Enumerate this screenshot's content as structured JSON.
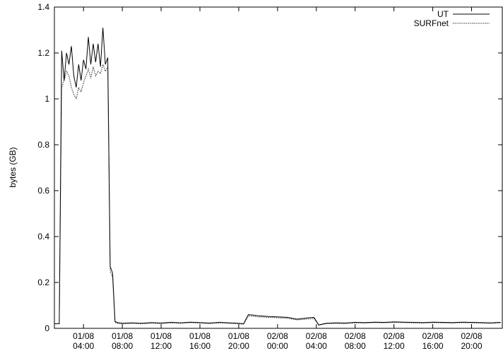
{
  "chart_data": {
    "type": "line",
    "ylabel": "bytes (GB)",
    "x": [
      "01/08 01:00",
      "01/08 01:15",
      "01/08 01:30",
      "01/08 01:45",
      "01/08 02:00",
      "01/08 02:15",
      "01/08 02:30",
      "01/08 02:45",
      "01/08 03:00",
      "01/08 03:15",
      "01/08 03:30",
      "01/08 03:45",
      "01/08 04:00",
      "01/08 04:15",
      "01/08 04:30",
      "01/08 04:45",
      "01/08 05:00",
      "01/08 05:15",
      "01/08 05:30",
      "01/08 05:45",
      "01/08 06:00",
      "01/08 06:15",
      "01/08 06:30",
      "01/08 06:45",
      "01/08 07:00",
      "01/08 07:15",
      "01/08 07:30",
      "01/08 08:00",
      "01/08 09:00",
      "01/08 10:00",
      "01/08 11:00",
      "01/08 12:00",
      "01/08 13:00",
      "01/08 14:00",
      "01/08 15:00",
      "01/08 16:00",
      "01/08 17:00",
      "01/08 18:00",
      "01/08 19:00",
      "01/08 20:00",
      "01/08 20:30",
      "01/08 21:00",
      "01/08 22:00",
      "01/08 23:00",
      "02/08 00:00",
      "02/08 01:00",
      "02/08 02:00",
      "02/08 03:00",
      "02/08 03:45",
      "02/08 04:15",
      "02/08 05:00",
      "02/08 06:00",
      "02/08 07:00",
      "02/08 08:00",
      "02/08 09:00",
      "02/08 10:00",
      "02/08 11:00",
      "02/08 12:00",
      "02/08 13:00",
      "02/08 14:00",
      "02/08 15:00",
      "02/08 16:00",
      "02/08 17:00",
      "02/08 18:00",
      "02/08 19:00",
      "02/08 20:00",
      "02/08 21:00",
      "02/08 22:00",
      "02/08 23:00"
    ],
    "series": [
      {
        "name": "UT",
        "color": "#000000",
        "dash": "solid",
        "values": [
          0.02,
          0.02,
          0.02,
          1.21,
          1.08,
          1.2,
          1.15,
          1.23,
          1.1,
          1.05,
          1.15,
          1.08,
          1.17,
          1.13,
          1.27,
          1.15,
          1.24,
          1.16,
          1.24,
          1.14,
          1.31,
          1.15,
          1.18,
          0.27,
          0.24,
          0.03,
          0.025,
          0.022,
          0.024,
          0.022,
          0.025,
          0.023,
          0.026,
          0.024,
          0.027,
          0.025,
          0.023,
          0.026,
          0.024,
          0.022,
          0.02,
          0.06,
          0.055,
          0.052,
          0.05,
          0.048,
          0.04,
          0.045,
          0.048,
          0.015,
          0.022,
          0.024,
          0.023,
          0.026,
          0.025,
          0.027,
          0.026,
          0.028,
          0.027,
          0.026,
          0.025,
          0.027,
          0.026,
          0.025,
          0.027,
          0.026,
          0.025,
          0.024,
          0.026
        ]
      },
      {
        "name": "SURFnet",
        "color": "#000000",
        "dash": "dotted",
        "values": [
          0.02,
          0.02,
          0.02,
          1.05,
          1.08,
          1.12,
          1.1,
          1.05,
          1.02,
          1.0,
          1.05,
          1.03,
          1.07,
          1.1,
          1.13,
          1.09,
          1.14,
          1.1,
          1.12,
          1.11,
          1.15,
          1.12,
          1.14,
          0.25,
          0.22,
          0.025,
          0.022,
          0.02,
          0.022,
          0.02,
          0.023,
          0.021,
          0.024,
          0.022,
          0.025,
          0.023,
          0.021,
          0.024,
          0.022,
          0.02,
          0.018,
          0.055,
          0.05,
          0.048,
          0.046,
          0.044,
          0.037,
          0.04,
          0.043,
          0.014,
          0.02,
          0.022,
          0.021,
          0.024,
          0.023,
          0.025,
          0.024,
          0.026,
          0.025,
          0.024,
          0.023,
          0.025,
          0.024,
          0.023,
          0.025,
          0.024,
          0.023,
          0.022,
          0.024
        ]
      }
    ],
    "xlim": [
      "01/08 01:00",
      "02/08 23:10"
    ],
    "xticks": [
      "01/08 04:00",
      "01/08 08:00",
      "01/08 12:00",
      "01/08 16:00",
      "01/08 20:00",
      "02/08 00:00",
      "02/08 04:00",
      "02/08 08:00",
      "02/08 12:00",
      "02/08 16:00",
      "02/08 20:00"
    ],
    "ylim": [
      0,
      1.4
    ],
    "yticks": [
      0,
      0.2,
      0.4,
      0.6,
      0.8,
      1,
      1.2,
      1.4
    ],
    "legend": "top-right",
    "grid": false
  }
}
